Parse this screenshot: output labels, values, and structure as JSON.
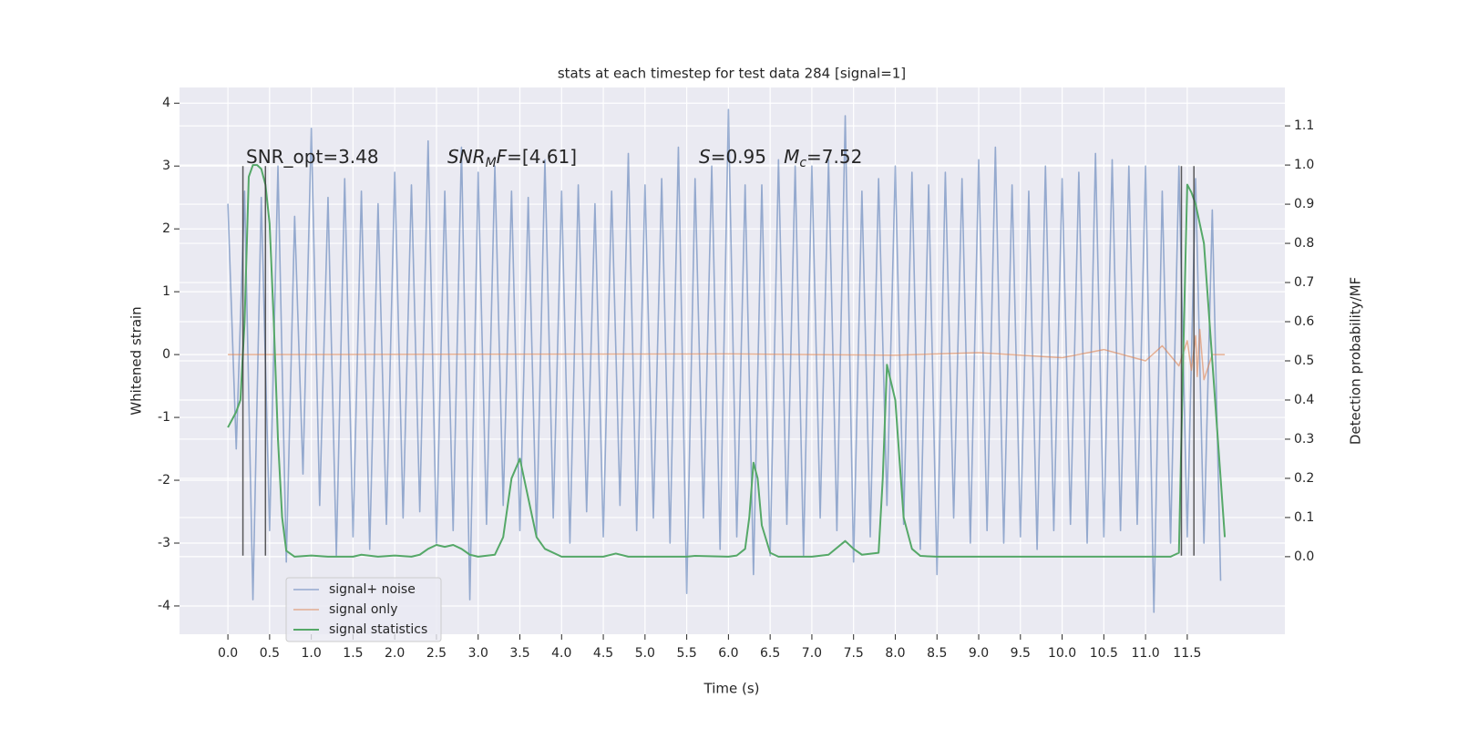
{
  "chart_data": {
    "type": "line",
    "title": "stats at each timestep for test data 284 [signal=1]",
    "xlabel": "Time (s)",
    "ylabel": "Whitened strain",
    "y2label": "Detection probability/MF",
    "xlim": [
      -0.58,
      12.67
    ],
    "ylim": [
      -4.45,
      4.25
    ],
    "y2lim": [
      -0.198,
      1.198
    ],
    "xticks": [
      {
        "value": 0,
        "label": "0.0"
      },
      {
        "value": 0.5,
        "label": "0.5"
      },
      {
        "value": 1,
        "label": "1.0"
      },
      {
        "value": 1.5,
        "label": "1.5"
      },
      {
        "value": 2,
        "label": "2.0"
      },
      {
        "value": 2.5,
        "label": "2.5"
      },
      {
        "value": 3,
        "label": "3.0"
      },
      {
        "value": 3.5,
        "label": "3.5"
      },
      {
        "value": 4,
        "label": "4.0"
      },
      {
        "value": 4.5,
        "label": "4.5"
      },
      {
        "value": 5,
        "label": "5.0"
      },
      {
        "value": 5.5,
        "label": "5.5"
      },
      {
        "value": 6,
        "label": "6.0"
      },
      {
        "value": 6.5,
        "label": "6.5"
      },
      {
        "value": 7,
        "label": "7.0"
      },
      {
        "value": 7.5,
        "label": "7.5"
      },
      {
        "value": 8,
        "label": "8.0"
      },
      {
        "value": 8.5,
        "label": "8.5"
      },
      {
        "value": 9,
        "label": "9.0"
      },
      {
        "value": 9.5,
        "label": "9.5"
      },
      {
        "value": 10,
        "label": "10.0"
      },
      {
        "value": 10.5,
        "label": "10.5"
      },
      {
        "value": 11,
        "label": "11.0"
      },
      {
        "value": 11.5,
        "label": "11.5"
      }
    ],
    "yticks": [
      -4,
      -3,
      -2,
      -1,
      0,
      1,
      2,
      3,
      4
    ],
    "y2ticks": [
      {
        "value": 0,
        "label": "0.0"
      },
      {
        "value": 0.1,
        "label": "0.1"
      },
      {
        "value": 0.2,
        "label": "0.2"
      },
      {
        "value": 0.3,
        "label": "0.3"
      },
      {
        "value": 0.4,
        "label": "0.4"
      },
      {
        "value": 0.5,
        "label": "0.5"
      },
      {
        "value": 0.6,
        "label": "0.6"
      },
      {
        "value": 0.7,
        "label": "0.7"
      },
      {
        "value": 0.8,
        "label": "0.8"
      },
      {
        "value": 0.9,
        "label": "0.9"
      },
      {
        "value": 1,
        "label": "1.0"
      },
      {
        "value": 1.1,
        "label": "1.1"
      }
    ],
    "grid": true,
    "legend": "lower left",
    "annotations": [
      [
        {
          "text": "SNR_opt=3.48"
        }
      ],
      [
        {
          "text": "SNR",
          "italic": true
        },
        {
          "text": "M",
          "italic": true,
          "sub": true
        },
        {
          "text": "F",
          "italic": true
        },
        {
          "text": "=[4.61]"
        }
      ],
      [
        {
          "text": "S",
          "italic": true
        },
        {
          "text": "=0.95   "
        },
        {
          "text": "M",
          "italic": true
        },
        {
          "text": "c",
          "italic": true,
          "sub": true
        },
        {
          "text": "=7.52"
        }
      ]
    ],
    "vlines": {
      "x": [
        0.18,
        0.45,
        11.43,
        11.58
      ],
      "ymin": -3.2,
      "ymax": 3.0,
      "color": "#333333"
    },
    "series": [
      {
        "name": "signal+ noise",
        "color": "#4c72b0",
        "x": [
          0,
          0.1,
          0.2,
          0.3,
          0.4,
          0.5,
          0.6,
          0.7,
          0.8,
          0.9,
          1,
          1.1,
          1.2,
          1.3,
          1.4,
          1.5,
          1.6,
          1.7,
          1.8,
          1.9,
          2,
          2.1,
          2.2,
          2.3,
          2.4,
          2.5,
          2.6,
          2.7,
          2.8,
          2.9,
          3,
          3.1,
          3.2,
          3.3,
          3.4,
          3.5,
          3.6,
          3.7,
          3.8,
          3.9,
          4,
          4.1,
          4.2,
          4.3,
          4.4,
          4.5,
          4.6,
          4.7,
          4.8,
          4.9,
          5,
          5.1,
          5.2,
          5.3,
          5.4,
          5.5,
          5.6,
          5.7,
          5.8,
          5.9,
          6,
          6.1,
          6.2,
          6.3,
          6.4,
          6.5,
          6.6,
          6.7,
          6.8,
          6.9,
          7,
          7.1,
          7.2,
          7.3,
          7.4,
          7.5,
          7.6,
          7.7,
          7.8,
          7.9,
          8,
          8.1,
          8.2,
          8.3,
          8.4,
          8.5,
          8.6,
          8.7,
          8.8,
          8.9,
          9,
          9.1,
          9.2,
          9.3,
          9.4,
          9.5,
          9.6,
          9.7,
          9.8,
          9.9,
          10,
          10.1,
          10.2,
          10.3,
          10.4,
          10.5,
          10.6,
          10.7,
          10.8,
          10.9,
          11,
          11.1,
          11.2,
          11.3,
          11.4,
          11.5,
          11.6,
          11.7,
          11.8,
          11.9
        ],
        "values": [
          2.4,
          -1.5,
          2.6,
          -3.9,
          2.5,
          -2.8,
          3.0,
          -3.3,
          2.2,
          -1.9,
          3.6,
          -2.4,
          2.5,
          -3.2,
          2.8,
          -2.9,
          2.6,
          -3.1,
          2.4,
          -2.7,
          2.9,
          -2.6,
          2.7,
          -2.5,
          3.4,
          -3.0,
          2.6,
          -2.8,
          3.3,
          -3.9,
          2.9,
          -2.7,
          3.0,
          -2.4,
          2.6,
          -2.8,
          2.5,
          -2.9,
          3.1,
          -2.6,
          2.6,
          -3.0,
          2.7,
          -2.5,
          2.4,
          -2.9,
          2.6,
          -2.4,
          3.2,
          -2.8,
          2.7,
          -2.6,
          2.8,
          -3.0,
          3.3,
          -3.8,
          2.8,
          -2.6,
          3.0,
          -3.1,
          3.9,
          -2.9,
          2.7,
          -3.5,
          2.7,
          -3.2,
          3.1,
          -2.7,
          3.0,
          -3.2,
          3.0,
          -2.6,
          3.1,
          -2.8,
          3.8,
          -3.3,
          2.6,
          -2.9,
          2.8,
          -2.4,
          3.0,
          -2.7,
          2.9,
          -3.1,
          2.7,
          -3.5,
          2.9,
          -2.6,
          2.8,
          -3.0,
          3.1,
          -2.8,
          3.3,
          -3.0,
          2.7,
          -2.9,
          2.6,
          -3.1,
          3.0,
          -2.8,
          2.8,
          -2.7,
          2.9,
          -3.0,
          3.2,
          -2.9,
          3.1,
          -2.8,
          3.0,
          -2.7,
          3.0,
          -4.1,
          2.6,
          -3.0,
          3.0,
          -2.9,
          2.8,
          -3.0,
          2.3,
          -3.6
        ]
      },
      {
        "name": "signal only",
        "color": "#dd8452",
        "x": [
          0,
          6,
          8,
          9,
          10,
          10.5,
          11,
          11.2,
          11.4,
          11.5,
          11.55,
          11.6,
          11.62,
          11.65,
          11.7,
          11.8,
          11.95
        ],
        "values": [
          0,
          0.01,
          -0.01,
          0.03,
          -0.05,
          0.08,
          -0.1,
          0.14,
          -0.18,
          0.22,
          -0.25,
          0.3,
          -0.35,
          0.4,
          -0.4,
          0,
          0
        ]
      },
      {
        "name": "signal statistics",
        "color": "#55a868",
        "axis": "y2",
        "x": [
          0,
          0.1,
          0.15,
          0.2,
          0.25,
          0.3,
          0.35,
          0.4,
          0.45,
          0.5,
          0.55,
          0.6,
          0.65,
          0.7,
          0.8,
          1,
          1.2,
          1.5,
          1.6,
          1.8,
          2,
          2.2,
          2.3,
          2.4,
          2.5,
          2.6,
          2.7,
          2.8,
          2.9,
          3,
          3.2,
          3.3,
          3.4,
          3.5,
          3.6,
          3.7,
          3.8,
          4,
          4.5,
          4.65,
          4.8,
          5.5,
          5.6,
          6,
          6.1,
          6.2,
          6.25,
          6.3,
          6.35,
          6.4,
          6.5,
          6.6,
          7,
          7.2,
          7.4,
          7.5,
          7.6,
          7.8,
          7.85,
          7.9,
          8,
          8.1,
          8.2,
          8.3,
          8.5,
          11.3,
          11.4,
          11.45,
          11.5,
          11.55,
          11.6,
          11.7,
          11.8,
          11.9,
          11.95
        ],
        "values": [
          0.33,
          0.37,
          0.4,
          0.6,
          0.97,
          1.0,
          1.0,
          0.99,
          0.95,
          0.85,
          0.6,
          0.3,
          0.1,
          0.015,
          0,
          0.003,
          0,
          0,
          0.005,
          0,
          0.003,
          0,
          0.005,
          0.02,
          0.03,
          0.025,
          0.03,
          0.02,
          0.005,
          0,
          0.005,
          0.05,
          0.2,
          0.25,
          0.15,
          0.05,
          0.02,
          0,
          0,
          0.008,
          0,
          0,
          0.002,
          0,
          0.003,
          0.02,
          0.1,
          0.24,
          0.2,
          0.08,
          0.01,
          0,
          0,
          0.005,
          0.04,
          0.02,
          0.005,
          0.01,
          0.2,
          0.49,
          0.4,
          0.1,
          0.02,
          0.002,
          0,
          0,
          0.01,
          0.5,
          0.95,
          0.93,
          0.9,
          0.8,
          0.5,
          0.2,
          0.05
        ]
      }
    ]
  }
}
